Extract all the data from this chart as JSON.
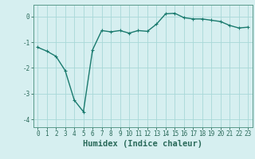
{
  "x": [
    0,
    1,
    2,
    3,
    4,
    5,
    6,
    7,
    8,
    9,
    10,
    11,
    12,
    13,
    14,
    15,
    16,
    17,
    18,
    19,
    20,
    21,
    22,
    23
  ],
  "y": [
    -1.2,
    -1.35,
    -1.55,
    -2.1,
    -3.25,
    -3.7,
    -1.3,
    -0.55,
    -0.6,
    -0.55,
    -0.65,
    -0.55,
    -0.58,
    -0.3,
    0.1,
    0.12,
    -0.05,
    -0.1,
    -0.1,
    -0.15,
    -0.2,
    -0.35,
    -0.45,
    -0.42
  ],
  "line_color": "#1a7a6e",
  "marker": "+",
  "marker_size": 3,
  "background_color": "#d6eff0",
  "grid_color": "#a8d8d8",
  "xlabel": "Humidex (Indice chaleur)",
  "xlim": [
    -0.5,
    23.5
  ],
  "ylim": [
    -4.3,
    0.45
  ],
  "yticks": [
    0,
    -1,
    -2,
    -3,
    -4
  ],
  "xticks": [
    0,
    1,
    2,
    3,
    4,
    5,
    6,
    7,
    8,
    9,
    10,
    11,
    12,
    13,
    14,
    15,
    16,
    17,
    18,
    19,
    20,
    21,
    22,
    23
  ],
  "tick_fontsize": 5.5,
  "xlabel_fontsize": 7.5,
  "line_width": 1.0,
  "spine_color": "#5a9a8a",
  "tick_color": "#2a6a5a"
}
